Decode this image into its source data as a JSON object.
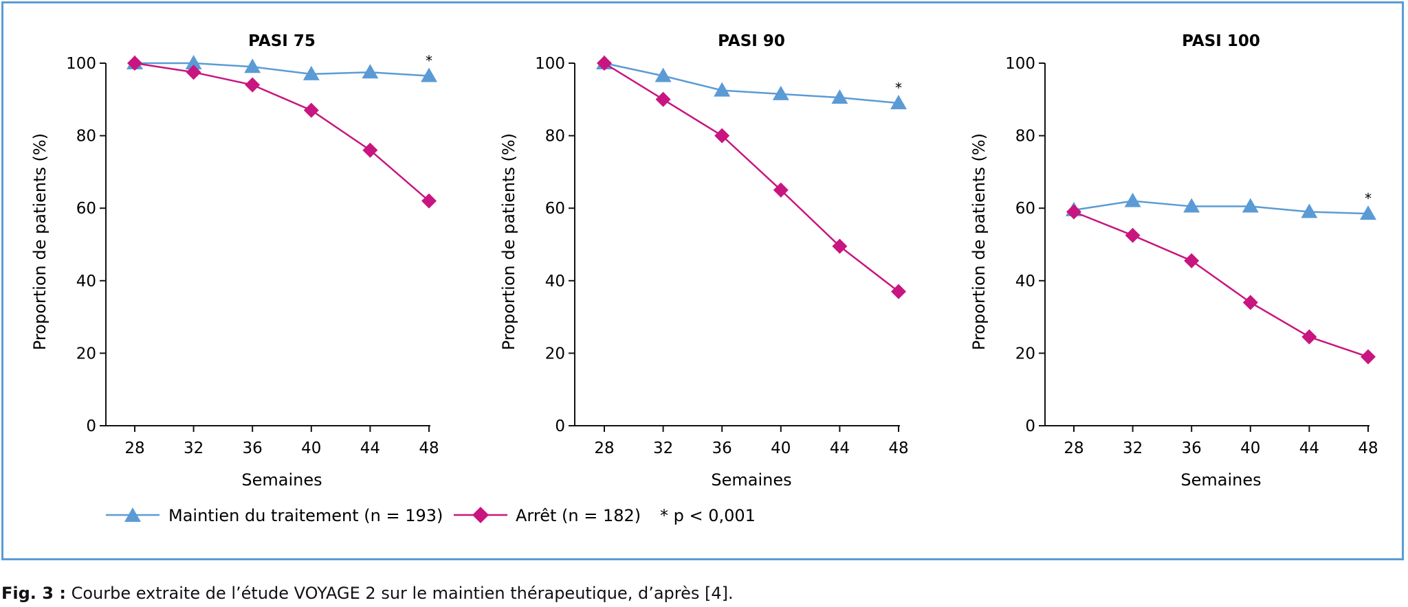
{
  "colors": {
    "maintien": "#5b9bd5",
    "arret": "#c8157f",
    "frame": "#5b9bd5"
  },
  "legend": {
    "maintien_label": "Maintien du traitement (n = 193)",
    "arret_label": "Arrêt (n = 182)",
    "note": "* p < 0,001"
  },
  "caption": {
    "label": "Fig. 3 :",
    "text": " Courbe extraite de l’étude VOYAGE 2 sur le maintien thérapeutique, d’après [4]."
  },
  "chart_data": [
    {
      "type": "line",
      "title": "PASI 75",
      "xlabel": "Semaines",
      "ylabel": "Proportion de patients (%)",
      "x": [
        28,
        32,
        36,
        40,
        44,
        48
      ],
      "ylim": [
        0,
        100
      ],
      "yticks": [
        0,
        20,
        40,
        60,
        80,
        100
      ],
      "series": [
        {
          "name": "Maintien du traitement (n = 193)",
          "marker": "triangle",
          "values": [
            100,
            100,
            99,
            97,
            97.5,
            96.5
          ]
        },
        {
          "name": "Arrêt (n = 182)",
          "marker": "diamond",
          "values": [
            100,
            97.5,
            94,
            87,
            76,
            62
          ]
        }
      ],
      "annotation": {
        "text": "*",
        "x": 48
      }
    },
    {
      "type": "line",
      "title": "PASI 90",
      "xlabel": "Semaines",
      "ylabel": "Proportion de patients (%)",
      "x": [
        28,
        32,
        36,
        40,
        44,
        48
      ],
      "ylim": [
        0,
        100
      ],
      "yticks": [
        0,
        20,
        40,
        60,
        80,
        100
      ],
      "series": [
        {
          "name": "Maintien du traitement (n = 193)",
          "marker": "triangle",
          "values": [
            100,
            96.5,
            92.5,
            91.5,
            90.5,
            89
          ]
        },
        {
          "name": "Arrêt (n = 182)",
          "marker": "diamond",
          "values": [
            100,
            90,
            80,
            65,
            49.5,
            37
          ]
        }
      ],
      "annotation": {
        "text": "*",
        "x": 48
      }
    },
    {
      "type": "line",
      "title": "PASI 100",
      "xlabel": "Semaines",
      "ylabel": "Proportion de patients (%)",
      "x": [
        28,
        32,
        36,
        40,
        44,
        48
      ],
      "ylim": [
        0,
        100
      ],
      "yticks": [
        0,
        20,
        40,
        60,
        80,
        100
      ],
      "series": [
        {
          "name": "Maintien du traitement (n = 193)",
          "marker": "triangle",
          "values": [
            59.5,
            62,
            60.5,
            60.5,
            59,
            58.5
          ]
        },
        {
          "name": "Arrêt (n = 182)",
          "marker": "diamond",
          "values": [
            59,
            52.5,
            45.5,
            34,
            24.5,
            19
          ]
        }
      ],
      "annotation": {
        "text": "*",
        "x": 48
      }
    }
  ]
}
